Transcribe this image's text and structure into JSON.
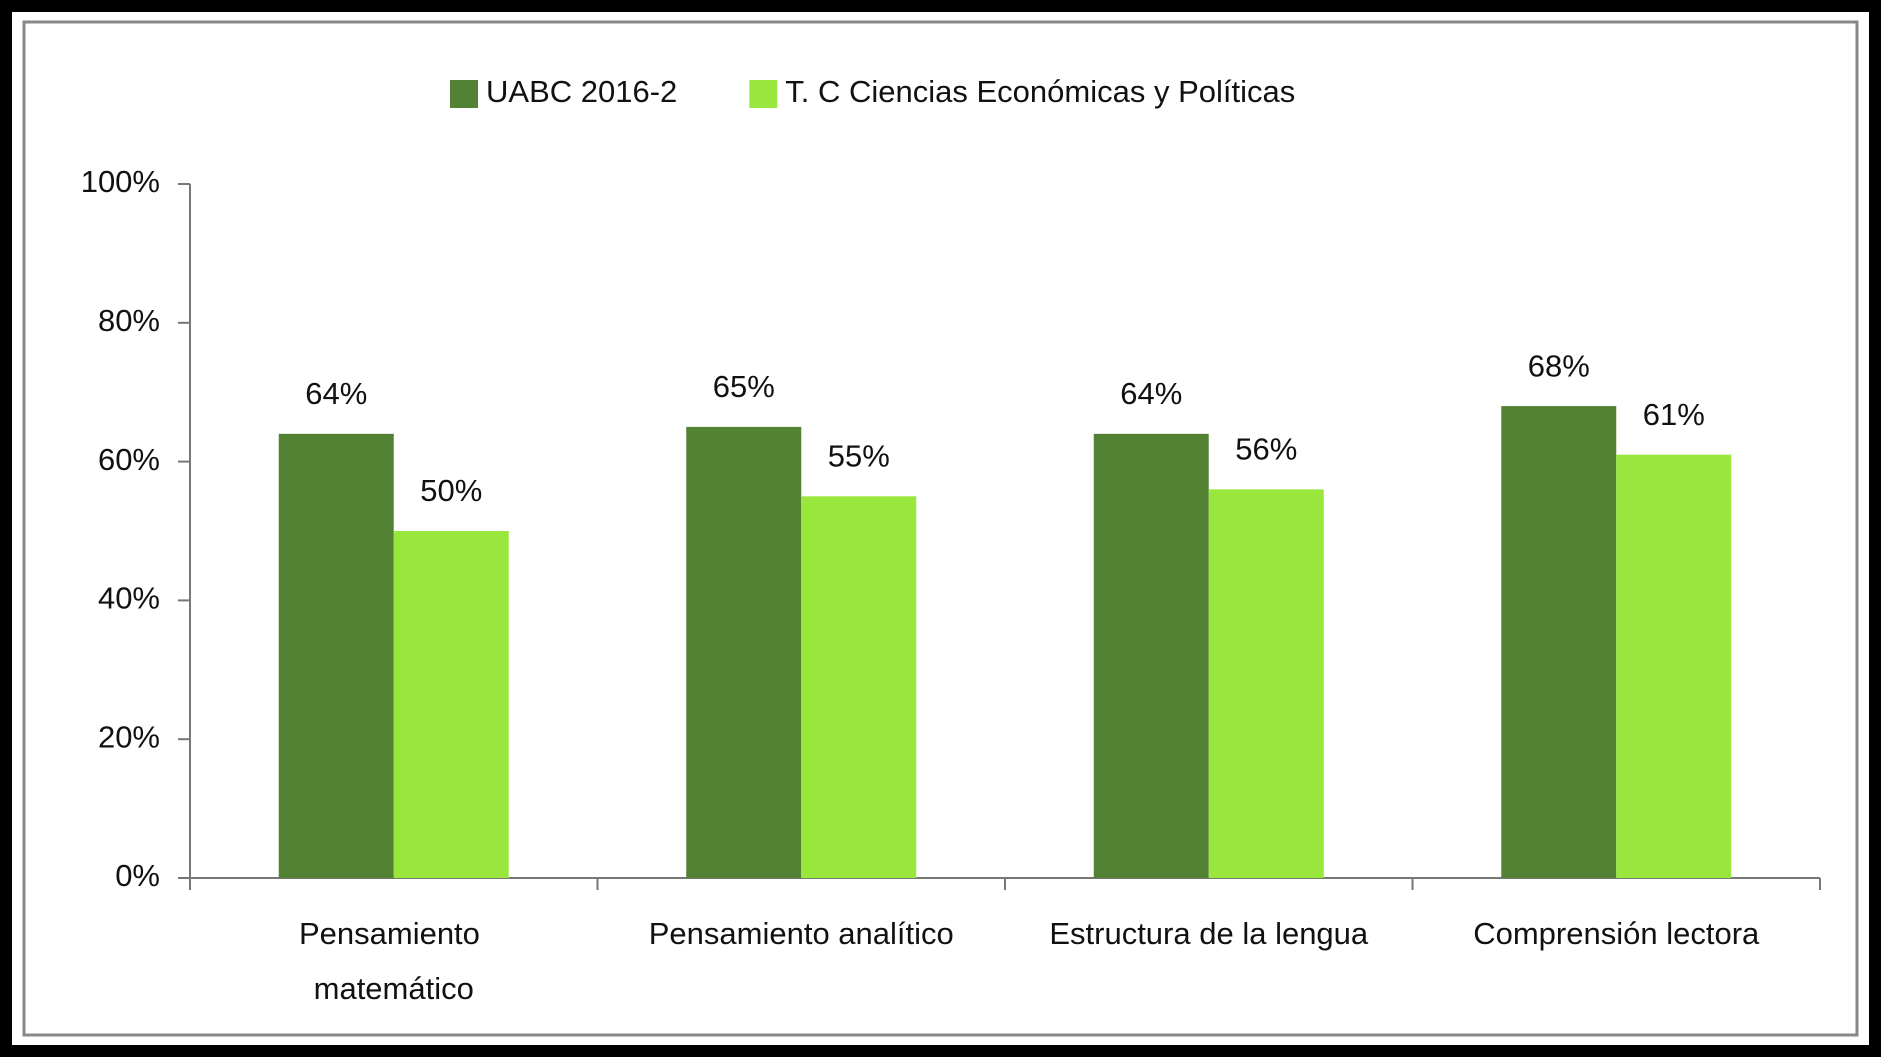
{
  "chart_data": {
    "type": "bar",
    "categories": [
      "Pensamiento matemático",
      "Pensamiento analítico",
      "Estructura de la lengua",
      "Comprensión lectora"
    ],
    "series": [
      {
        "name": "UABC 2016-2",
        "color": "#548235",
        "values": [
          64,
          65,
          64,
          68
        ],
        "value_labels": [
          "64%",
          "65%",
          "64%",
          "68%"
        ]
      },
      {
        "name": "T. C Ciencias Económicas y Políticas",
        "color": "#99e63c",
        "values": [
          50,
          55,
          56,
          61
        ],
        "value_labels": [
          "50%",
          "55%",
          "56%",
          "61%"
        ]
      }
    ],
    "ylim": [
      0,
      100
    ],
    "yticks": [
      {
        "value": 0,
        "label": "0%"
      },
      {
        "value": 20,
        "label": "20%"
      },
      {
        "value": 40,
        "label": "40%"
      },
      {
        "value": 60,
        "label": "60%"
      },
      {
        "value": 80,
        "label": "80%"
      },
      {
        "value": 100,
        "label": "100%"
      }
    ],
    "legend": "top"
  }
}
